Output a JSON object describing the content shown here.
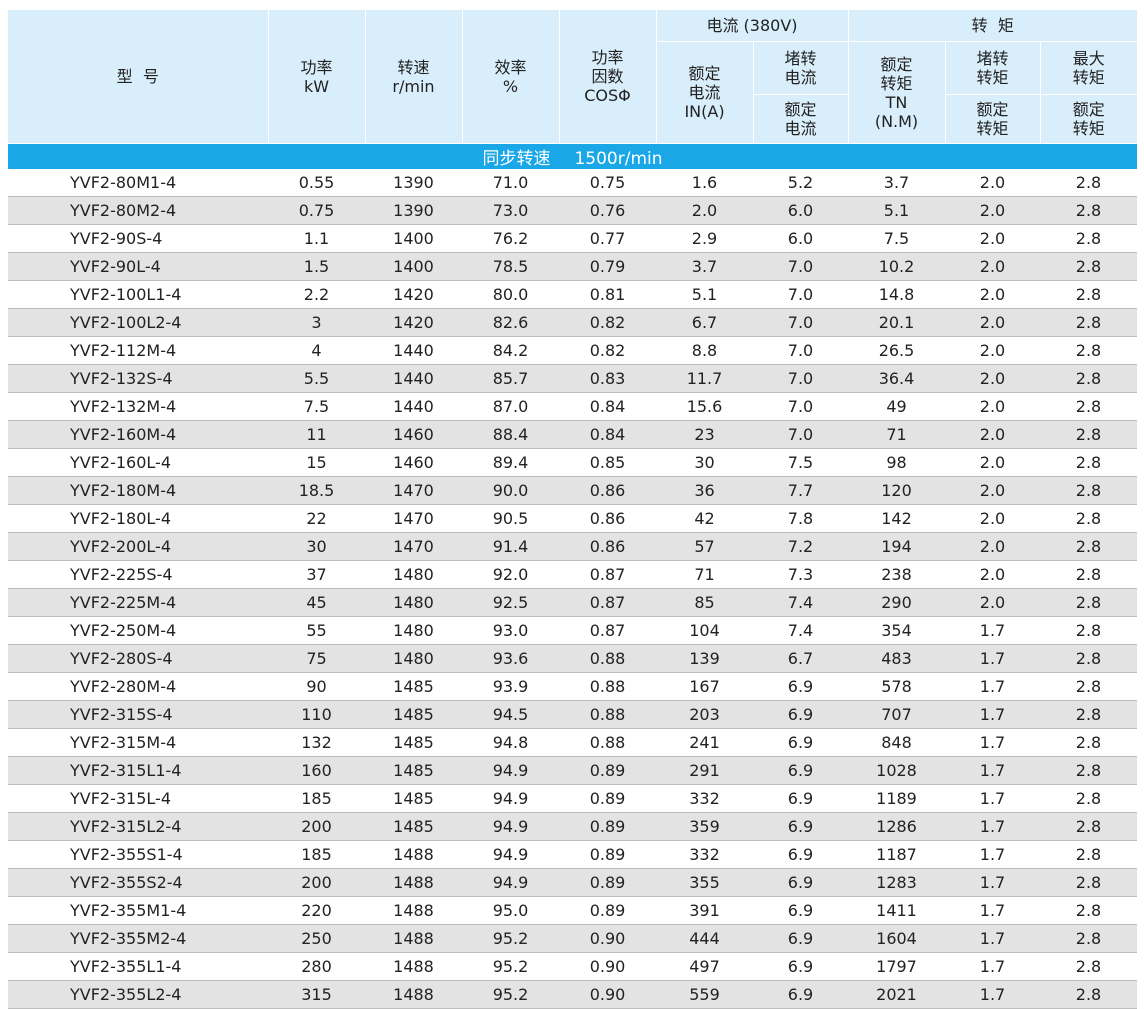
{
  "headers": {
    "model": "型  号",
    "power": "功率\nkW",
    "speed": "转速\nr/min",
    "efficiency": "效率\n%",
    "pf": "功率\n因数\nCOSΦ",
    "current_group": "电流 (380V)",
    "rated_current": "额定\n电流\nIN(A)",
    "locked_current_top": "堵转\n电流",
    "locked_current_bottom": "额定\n电流",
    "torque_group": "转  矩",
    "rated_torque": "额定\n转矩\nTN\n(N.M)",
    "locked_torque_top": "堵转\n转矩",
    "locked_torque_bottom": "额定\n转矩",
    "max_torque_top": "最大\n转矩",
    "max_torque_bottom": "额定\n转矩"
  },
  "section": {
    "label": "同步转速",
    "value": "1500r/min"
  },
  "rows": [
    [
      "YVF2-80M1-4",
      "0.55",
      "1390",
      "71.0",
      "0.75",
      "1.6",
      "5.2",
      "3.7",
      "2.0",
      "2.8"
    ],
    [
      "YVF2-80M2-4",
      "0.75",
      "1390",
      "73.0",
      "0.76",
      "2.0",
      "6.0",
      "5.1",
      "2.0",
      "2.8"
    ],
    [
      "YVF2-90S-4",
      "1.1",
      "1400",
      "76.2",
      "0.77",
      "2.9",
      "6.0",
      "7.5",
      "2.0",
      "2.8"
    ],
    [
      "YVF2-90L-4",
      "1.5",
      "1400",
      "78.5",
      "0.79",
      "3.7",
      "7.0",
      "10.2",
      "2.0",
      "2.8"
    ],
    [
      "YVF2-100L1-4",
      "2.2",
      "1420",
      "80.0",
      "0.81",
      "5.1",
      "7.0",
      "14.8",
      "2.0",
      "2.8"
    ],
    [
      "YVF2-100L2-4",
      "3",
      "1420",
      "82.6",
      "0.82",
      "6.7",
      "7.0",
      "20.1",
      "2.0",
      "2.8"
    ],
    [
      "YVF2-112M-4",
      "4",
      "1440",
      "84.2",
      "0.82",
      "8.8",
      "7.0",
      "26.5",
      "2.0",
      "2.8"
    ],
    [
      "YVF2-132S-4",
      "5.5",
      "1440",
      "85.7",
      "0.83",
      "11.7",
      "7.0",
      "36.4",
      "2.0",
      "2.8"
    ],
    [
      "YVF2-132M-4",
      "7.5",
      "1440",
      "87.0",
      "0.84",
      "15.6",
      "7.0",
      "49",
      "2.0",
      "2.8"
    ],
    [
      "YVF2-160M-4",
      "11",
      "1460",
      "88.4",
      "0.84",
      "23",
      "7.0",
      "71",
      "2.0",
      "2.8"
    ],
    [
      "YVF2-160L-4",
      "15",
      "1460",
      "89.4",
      "0.85",
      "30",
      "7.5",
      "98",
      "2.0",
      "2.8"
    ],
    [
      "YVF2-180M-4",
      "18.5",
      "1470",
      "90.0",
      "0.86",
      "36",
      "7.7",
      "120",
      "2.0",
      "2.8"
    ],
    [
      "YVF2-180L-4",
      "22",
      "1470",
      "90.5",
      "0.86",
      "42",
      "7.8",
      "142",
      "2.0",
      "2.8"
    ],
    [
      "YVF2-200L-4",
      "30",
      "1470",
      "91.4",
      "0.86",
      "57",
      "7.2",
      "194",
      "2.0",
      "2.8"
    ],
    [
      "YVF2-225S-4",
      "37",
      "1480",
      "92.0",
      "0.87",
      "71",
      "7.3",
      "238",
      "2.0",
      "2.8"
    ],
    [
      "YVF2-225M-4",
      "45",
      "1480",
      "92.5",
      "0.87",
      "85",
      "7.4",
      "290",
      "2.0",
      "2.8"
    ],
    [
      "YVF2-250M-4",
      "55",
      "1480",
      "93.0",
      "0.87",
      "104",
      "7.4",
      "354",
      "1.7",
      "2.8"
    ],
    [
      "YVF2-280S-4",
      "75",
      "1480",
      "93.6",
      "0.88",
      "139",
      "6.7",
      "483",
      "1.7",
      "2.8"
    ],
    [
      "YVF2-280M-4",
      "90",
      "1485",
      "93.9",
      "0.88",
      "167",
      "6.9",
      "578",
      "1.7",
      "2.8"
    ],
    [
      "YVF2-315S-4",
      "110",
      "1485",
      "94.5",
      "0.88",
      "203",
      "6.9",
      "707",
      "1.7",
      "2.8"
    ],
    [
      "YVF2-315M-4",
      "132",
      "1485",
      "94.8",
      "0.88",
      "241",
      "6.9",
      "848",
      "1.7",
      "2.8"
    ],
    [
      "YVF2-315L1-4",
      "160",
      "1485",
      "94.9",
      "0.89",
      "291",
      "6.9",
      "1028",
      "1.7",
      "2.8"
    ],
    [
      "YVF2-315L-4",
      "185",
      "1485",
      "94.9",
      "0.89",
      "332",
      "6.9",
      "1189",
      "1.7",
      "2.8"
    ],
    [
      "YVF2-315L2-4",
      "200",
      "1485",
      "94.9",
      "0.89",
      "359",
      "6.9",
      "1286",
      "1.7",
      "2.8"
    ],
    [
      "YVF2-355S1-4",
      "185",
      "1488",
      "94.9",
      "0.89",
      "332",
      "6.9",
      "1187",
      "1.7",
      "2.8"
    ],
    [
      "YVF2-355S2-4",
      "200",
      "1488",
      "94.9",
      "0.89",
      "355",
      "6.9",
      "1283",
      "1.7",
      "2.8"
    ],
    [
      "YVF2-355M1-4",
      "220",
      "1488",
      "95.0",
      "0.89",
      "391",
      "6.9",
      "1411",
      "1.7",
      "2.8"
    ],
    [
      "YVF2-355M2-4",
      "250",
      "1488",
      "95.2",
      "0.90",
      "444",
      "6.9",
      "1604",
      "1.7",
      "2.8"
    ],
    [
      "YVF2-355L1-4",
      "280",
      "1488",
      "95.2",
      "0.90",
      "497",
      "6.9",
      "1797",
      "1.7",
      "2.8"
    ],
    [
      "YVF2-355L2-4",
      "315",
      "1488",
      "95.2",
      "0.90",
      "559",
      "6.9",
      "2021",
      "1.7",
      "2.8"
    ]
  ]
}
